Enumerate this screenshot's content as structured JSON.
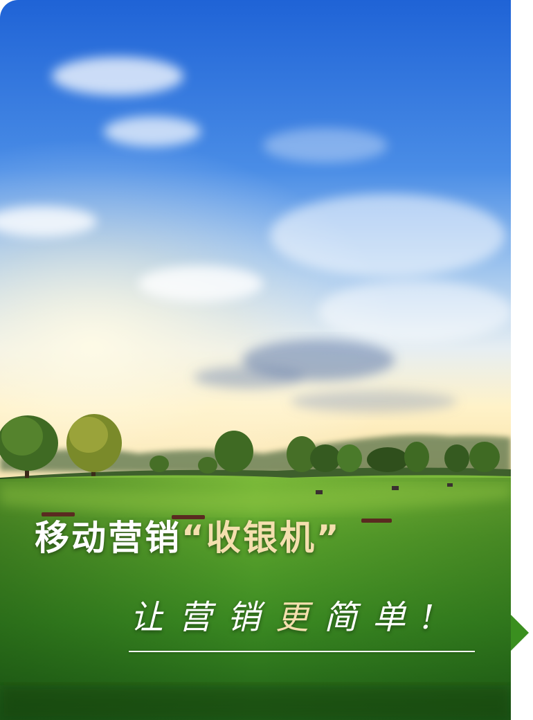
{
  "headline": {
    "part1": "移动营销",
    "part2": "“收银机”"
  },
  "slogan": {
    "part1": "让营销",
    "part2": "更",
    "part3": "简单!"
  },
  "colors": {
    "headline_white": "#ffffff",
    "headline_gold": "#f4dfae",
    "sky_top": "#1f63d6",
    "grass": "#3a8f1f"
  }
}
